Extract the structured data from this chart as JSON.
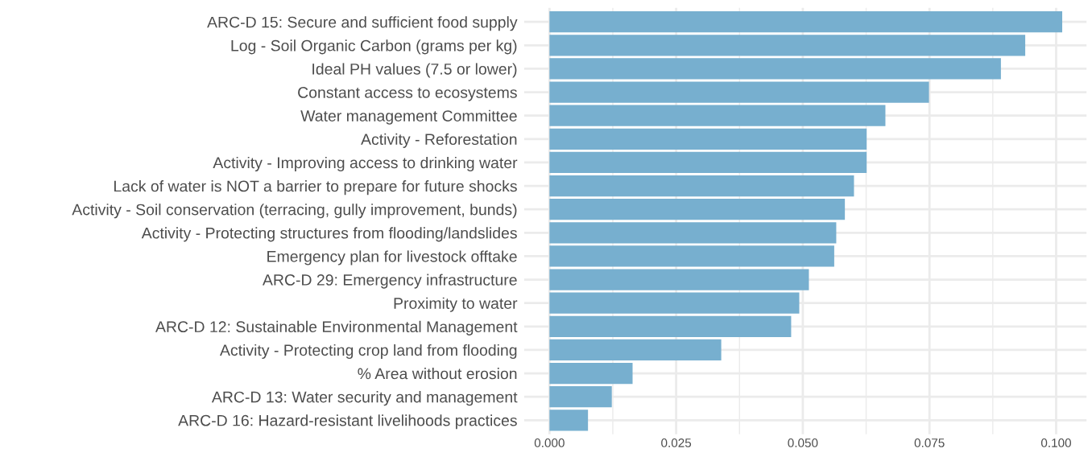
{
  "chart_data": {
    "type": "bar",
    "orientation": "horizontal",
    "grid": true,
    "color": "#77afcf",
    "categories": [
      "ARC-D 15: Secure and sufficient food supply",
      "Log - Soil Organic Carbon (grams per kg)",
      "Ideal PH values (7.5 or lower)",
      "Constant access to ecosystems",
      "Water management Committee",
      "Activity - Reforestation",
      "Activity - Improving access to drinking water",
      "Lack of water is NOT a barrier to prepare for future shocks",
      "Activity - Soil conservation (terracing, gully improvement, bunds)",
      "Activity - Protecting structures from flooding/landslides",
      "Emergency plan for livestock offtake",
      "ARC-D 29: Emergency infrastructure",
      "Proximity to water",
      "ARC-D 12: Sustainable Environmental Management",
      "Activity - Protecting crop land from flooding",
      "% Area without erosion",
      "ARC-D 13: Water security and management",
      "ARC-D 16: Hazard-resistant livelihoods practices"
    ],
    "values": [
      0.1012,
      0.0939,
      0.0891,
      0.0749,
      0.0663,
      0.0626,
      0.0626,
      0.0601,
      0.0583,
      0.0566,
      0.0562,
      0.0512,
      0.0493,
      0.0477,
      0.0339,
      0.0164,
      0.0123,
      0.0076
    ],
    "xlim": [
      -0.005,
      0.106
    ],
    "xticks": [
      {
        "value": 0,
        "label": "0.000"
      },
      {
        "value": 0.0125,
        "label": null
      },
      {
        "value": 0.025,
        "label": "0.025"
      },
      {
        "value": 0.0375,
        "label": null
      },
      {
        "value": 0.05,
        "label": "0.050"
      },
      {
        "value": 0.0625,
        "label": null
      },
      {
        "value": 0.075,
        "label": "0.075"
      },
      {
        "value": 0.0875,
        "label": null
      },
      {
        "value": 0.1,
        "label": "0.100"
      }
    ]
  }
}
